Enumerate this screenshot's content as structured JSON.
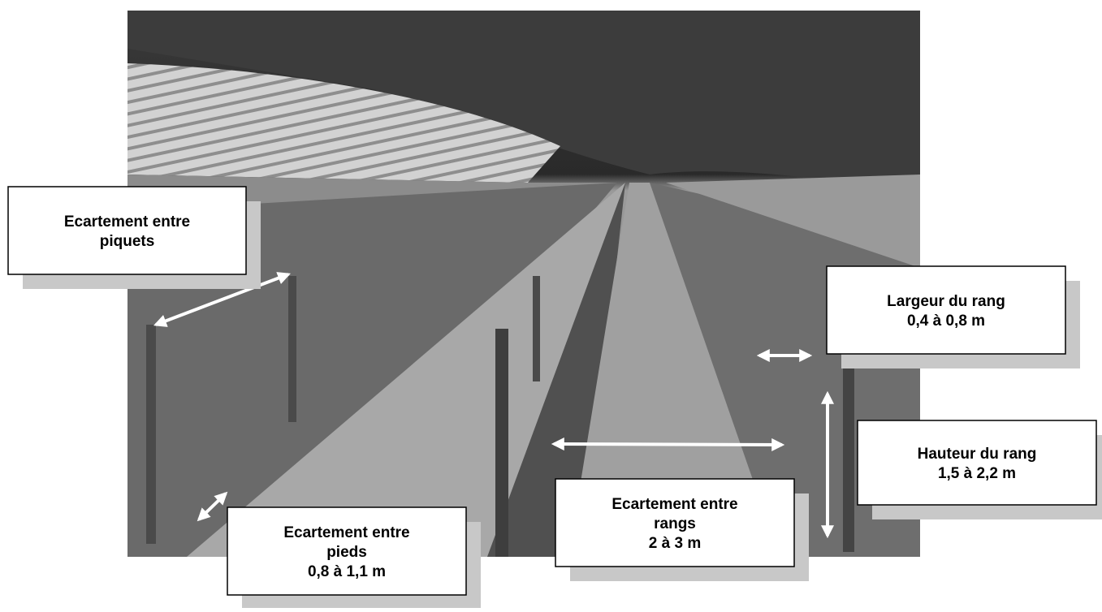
{
  "labels": [
    {
      "lines": [
        "Ecartement entre",
        "piquets"
      ]
    },
    {
      "lines": [
        "Largeur du rang",
        "0,4 à 0,8 m"
      ]
    },
    {
      "lines": [
        "Hauteur du rang",
        "1,5 à 2,2 m"
      ]
    },
    {
      "lines": [
        "Ecartement entre",
        "rangs",
        "2 à 3 m"
      ]
    },
    {
      "lines": [
        "Ecartement entre",
        "pieds",
        "0,8 à 1,1 m"
      ]
    }
  ]
}
